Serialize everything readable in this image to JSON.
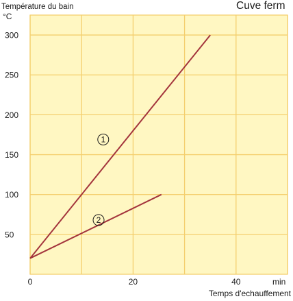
{
  "chart_data": {
    "type": "line",
    "title": "Cuve ferm",
    "ylabel": "Température du bain",
    "yunit": "°C",
    "xlabel": "Temps d'echauffement",
    "xunit": "min",
    "xlim": [
      0,
      50
    ],
    "ylim": [
      0,
      325
    ],
    "x_ticks": [
      "0",
      "20",
      "40"
    ],
    "y_ticks": [
      "50",
      "100",
      "150",
      "200",
      "250",
      "300"
    ],
    "grid": true,
    "series": [
      {
        "name": "1",
        "x": [
          0,
          35
        ],
        "y": [
          20,
          300
        ]
      },
      {
        "name": "2",
        "x": [
          0,
          25.5
        ],
        "y": [
          20,
          100
        ]
      }
    ]
  },
  "colors": {
    "background": "#fff7c2",
    "grid": "#f4cf6e",
    "line": "#a3343c",
    "text": "#1a1a1a"
  }
}
